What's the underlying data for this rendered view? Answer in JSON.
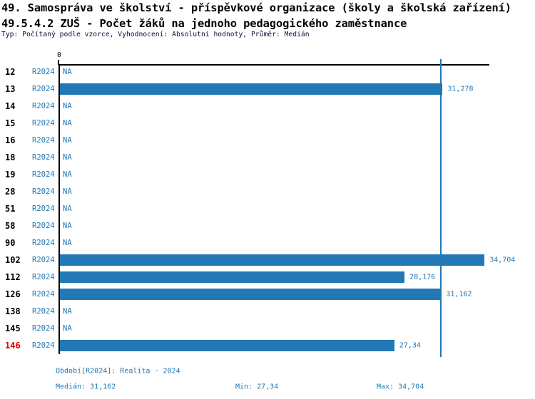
{
  "header": {
    "title_line1": "49. Samospráva ve školství - příspěvkové organizace (školy a školská zařízení)",
    "title_line2": "49.5.4.2 ZUŠ - Počet žáků na jednoho pedagogického zaměstnance",
    "meta_line": "Typ: Počítaný podle vzorce, Vyhodnocení: Absolutní hodnoty, Průměr: Medián"
  },
  "colors": {
    "bar_blue": "#2278b4",
    "text_blue": "#2278b4",
    "highlight_red": "#dd0000",
    "axis_black": "#000000"
  },
  "chart_data": {
    "type": "bar",
    "orientation": "horizontal",
    "title": "49.5.4.2 ZUŠ - Počet žáků na jednoho pedagogického zaměstnance",
    "series_label": "R2024",
    "na_label": "NA",
    "zero_tick_label": "0",
    "xlim": [
      0,
      35
    ],
    "grid": false,
    "median_value": 31.162,
    "min_value": 27.34,
    "max_value": 34.704,
    "rows": [
      {
        "id": "12",
        "value": null,
        "value_label": "NA",
        "highlight": false
      },
      {
        "id": "13",
        "value": 31.278,
        "value_label": "31,278",
        "highlight": false
      },
      {
        "id": "14",
        "value": null,
        "value_label": "NA",
        "highlight": false
      },
      {
        "id": "15",
        "value": null,
        "value_label": "NA",
        "highlight": false
      },
      {
        "id": "16",
        "value": null,
        "value_label": "NA",
        "highlight": false
      },
      {
        "id": "18",
        "value": null,
        "value_label": "NA",
        "highlight": false
      },
      {
        "id": "19",
        "value": null,
        "value_label": "NA",
        "highlight": false
      },
      {
        "id": "28",
        "value": null,
        "value_label": "NA",
        "highlight": false
      },
      {
        "id": "51",
        "value": null,
        "value_label": "NA",
        "highlight": false
      },
      {
        "id": "58",
        "value": null,
        "value_label": "NA",
        "highlight": false
      },
      {
        "id": "90",
        "value": null,
        "value_label": "NA",
        "highlight": false
      },
      {
        "id": "102",
        "value": 34.704,
        "value_label": "34,704",
        "highlight": false
      },
      {
        "id": "112",
        "value": 28.176,
        "value_label": "28,176",
        "highlight": false
      },
      {
        "id": "126",
        "value": 31.162,
        "value_label": "31,162",
        "highlight": false
      },
      {
        "id": "138",
        "value": null,
        "value_label": "NA",
        "highlight": false
      },
      {
        "id": "145",
        "value": null,
        "value_label": "NA",
        "highlight": false
      },
      {
        "id": "146",
        "value": 27.34,
        "value_label": "27,34",
        "highlight": true
      }
    ]
  },
  "footer": {
    "period": "Období[R2024]: Realita - 2024",
    "median": "Medián: 31,162",
    "min": "Min: 27,34",
    "max": "Max: 34,704"
  }
}
